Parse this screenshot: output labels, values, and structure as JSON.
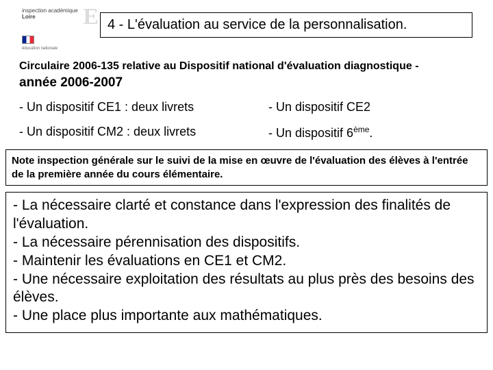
{
  "logo": {
    "line1": "inspection académique",
    "dept": "Loire",
    "sub": "éducation nationale"
  },
  "title": "4 - L'évaluation au service de la personnalisation.",
  "circulaire": {
    "text": "Circulaire 2006-135 relative au Dispositif national d'évaluation diagnostique -",
    "year": "année 2006-2007"
  },
  "dispositifs": {
    "left1": "- Un dispositif CE1 : deux livrets",
    "right1": "- Un dispositif CE2",
    "left2": "- Un dispositif CM2 : deux livrets",
    "right2_pre": "- Un dispositif 6",
    "right2_sup": "ème",
    "right2_post": "."
  },
  "note": "Note inspection générale sur le suivi de la mise en œuvre  de l'évaluation des élèves à l'entrée de la première année du cours élémentaire.",
  "bullets": {
    "b1": "- La nécessaire clarté et constance dans l'expression des finalités de l'évaluation.",
    "b2": "- La nécessaire pérennisation des dispositifs.",
    "b3": "- Maintenir les évaluations en CE1 et CM2.",
    "b4": "- Une nécessaire exploitation des résultats au plus près des besoins des élèves.",
    "b5": "- Une place plus importante aux mathématiques."
  },
  "colors": {
    "border": "#000000",
    "text": "#000000",
    "background": "#ffffff"
  }
}
